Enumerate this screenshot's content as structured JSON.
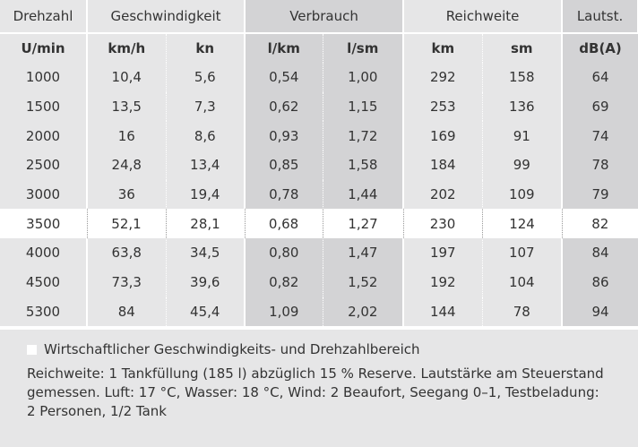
{
  "table": {
    "group_headers": [
      "Drehzahl",
      "Geschwindigkeit",
      "Verbrauch",
      "Reichweite",
      "Lautst."
    ],
    "unit_headers": [
      "U/min",
      "km/h",
      "kn",
      "l/km",
      "l/sm",
      "km",
      "sm",
      "dB(A)"
    ],
    "rows": [
      [
        "1000",
        "10,4",
        "5,6",
        "0,54",
        "1,00",
        "292",
        "158",
        "64"
      ],
      [
        "1500",
        "13,5",
        "7,3",
        "0,62",
        "1,15",
        "253",
        "136",
        "69"
      ],
      [
        "2000",
        "16",
        "8,6",
        "0,93",
        "1,72",
        "169",
        "91",
        "74"
      ],
      [
        "2500",
        "24,8",
        "13,4",
        "0,85",
        "1,58",
        "184",
        "99",
        "78"
      ],
      [
        "3000",
        "36",
        "19,4",
        "0,78",
        "1,44",
        "202",
        "109",
        "79"
      ],
      [
        "3500",
        "52,1",
        "28,1",
        "0,68",
        "1,27",
        "230",
        "124",
        "82"
      ],
      [
        "4000",
        "63,8",
        "34,5",
        "0,80",
        "1,47",
        "197",
        "107",
        "84"
      ],
      [
        "4500",
        "73,3",
        "39,6",
        "0,82",
        "1,52",
        "192",
        "104",
        "86"
      ],
      [
        "5300",
        "84",
        "45,4",
        "1,09",
        "2,02",
        "144",
        "78",
        "94"
      ]
    ],
    "highlighted_row": 5
  },
  "footer": {
    "legend": "Wirtschaftlicher Geschwindigkeits- und Drehzahlbereich",
    "note": "Reichweite: 1 Tankfüllung (185 l) abzüglich 15 % Reserve. Lautstärke am Steuerstand gemessen. Luft: 17 °C, Wasser: 18 °C, Wind: 2 Beaufort, Seegang 0–1, Testbeladung: 2 Personen, 1/2 Tank"
  }
}
